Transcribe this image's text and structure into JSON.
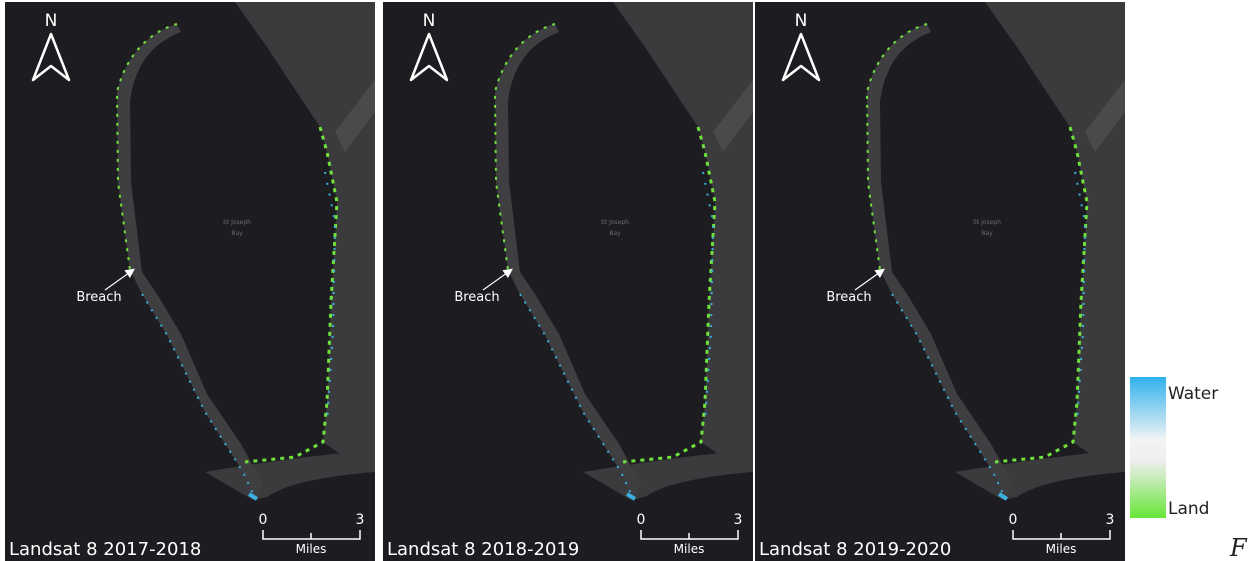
{
  "panels": [
    {
      "north": "N",
      "bay": [
        "St Joseph",
        "Bay"
      ],
      "breach": "Breach",
      "scale": {
        "ticks": [
          0,
          3
        ],
        "unit": "Miles"
      },
      "caption": "Landsat 8 2017-2018"
    },
    {
      "north": "N",
      "bay": [
        "St Joseph",
        "Bay"
      ],
      "breach": "Breach",
      "scale": {
        "ticks": [
          0,
          3
        ],
        "unit": "Miles"
      },
      "caption": "Landsat 8 2018-2019"
    },
    {
      "north": "N",
      "bay": [
        "St Joseph",
        "Bay"
      ],
      "breach": "Breach",
      "scale": {
        "ticks": [
          0,
          3
        ],
        "unit": "Miles"
      },
      "caption": "Landsat 8 2019-2020"
    }
  ],
  "legend": {
    "top": "Water",
    "bottom": "Land"
  },
  "figure_mark": "F"
}
